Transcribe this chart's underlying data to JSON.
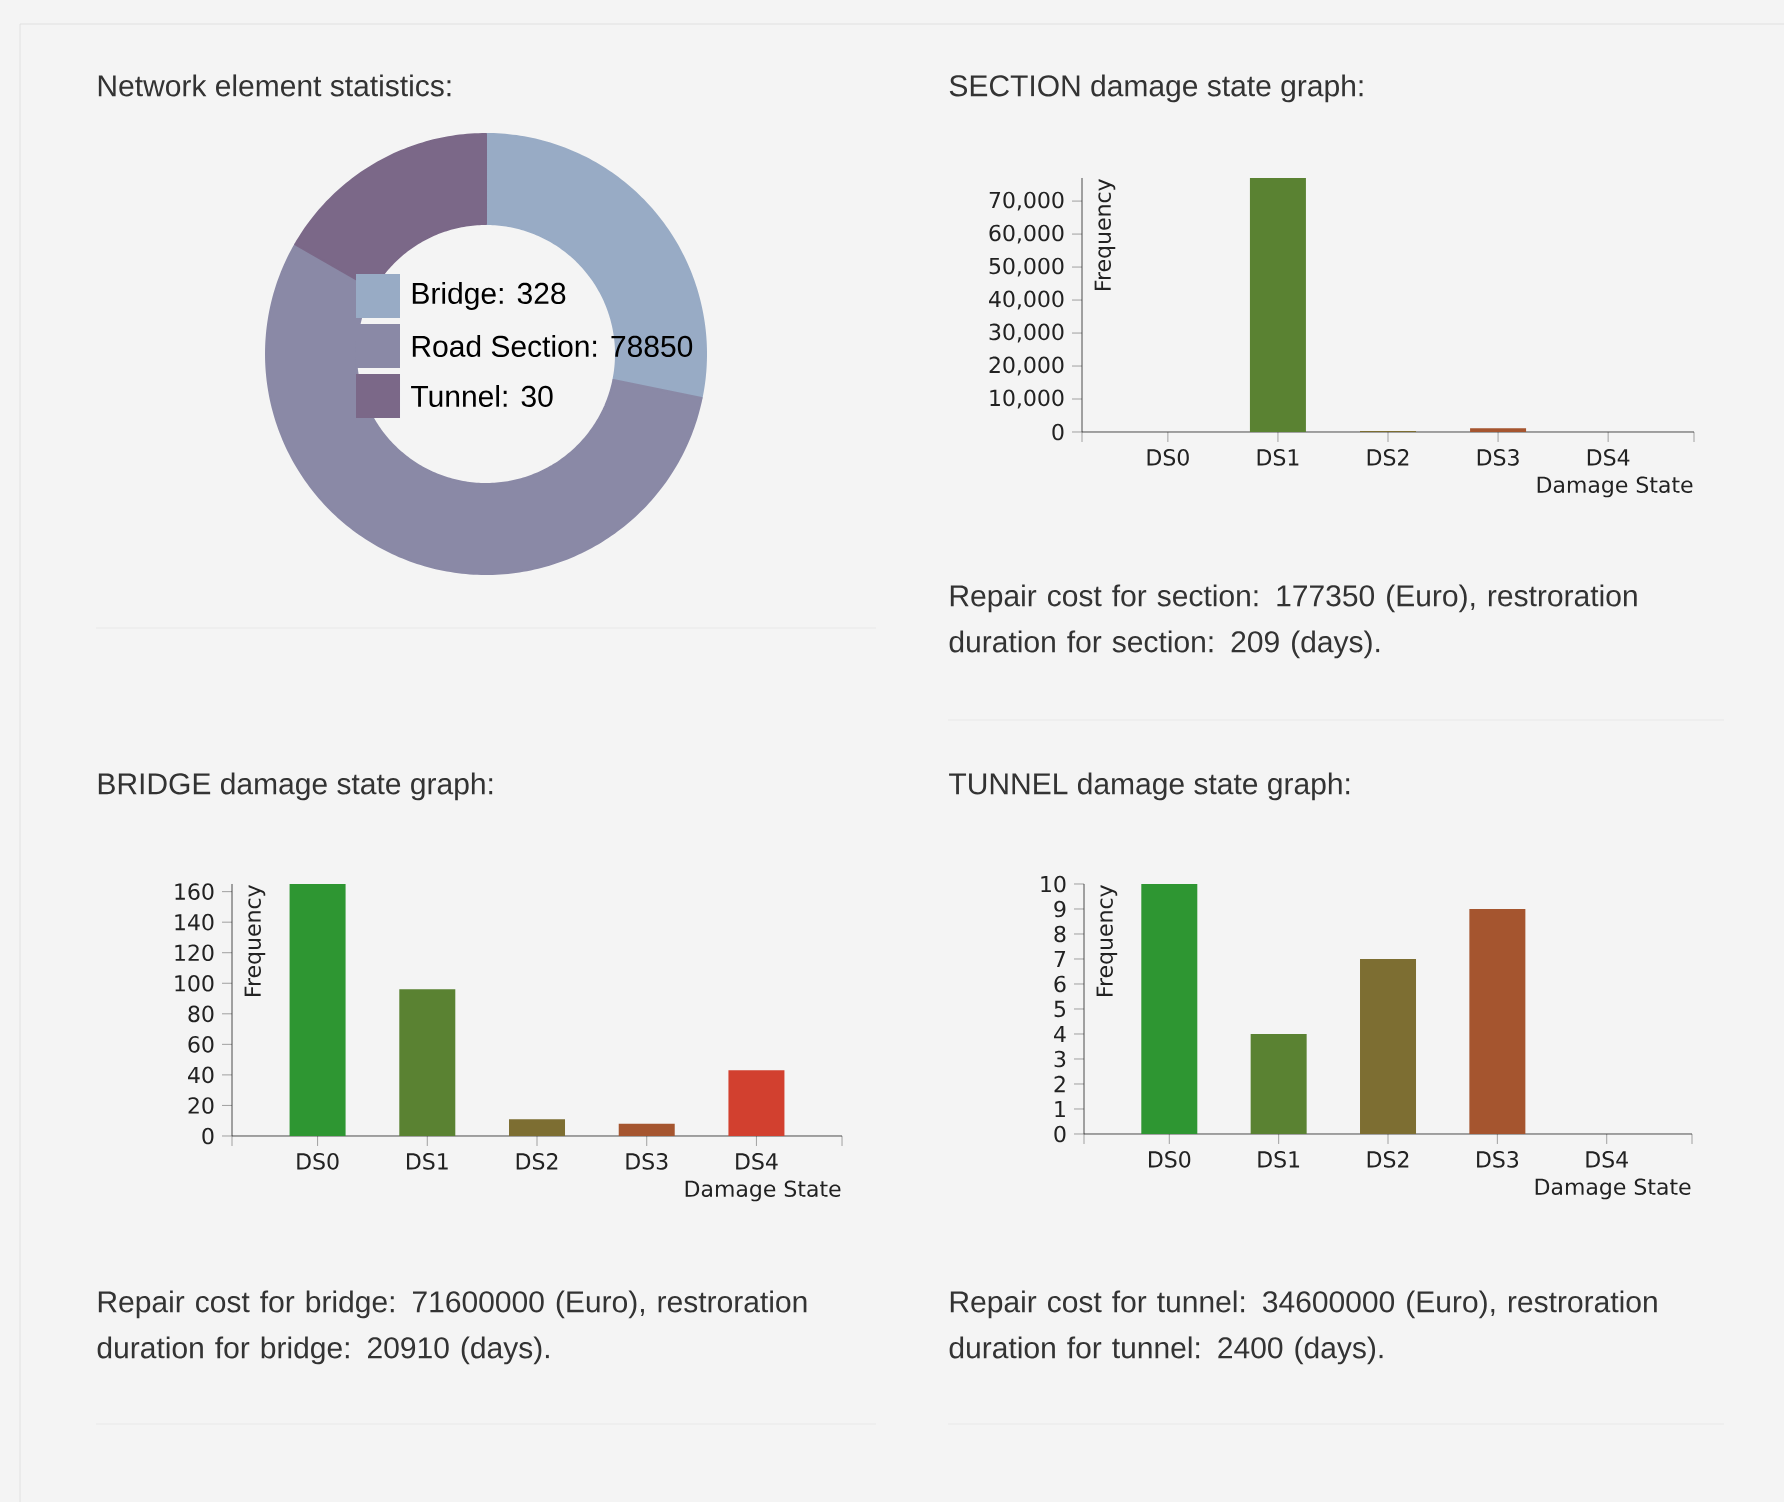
{
  "chart_data": [
    {
      "type": "donut",
      "title": "Network element statistics:",
      "categories": [
        "Bridge: 328",
        "Road Section: 78850",
        "Tunnel: 30"
      ],
      "values": [
        28.2,
        55.1,
        16.7
      ],
      "colors": [
        "#98abc5",
        "#8a89a6",
        "#7b6888"
      ],
      "legend": "center"
    },
    {
      "type": "bar",
      "title": "SECTION damage state graph:",
      "xlabel": "Damage State",
      "ylabel": "Frequency",
      "categories": [
        "DS0",
        "DS1",
        "DS2",
        "DS3",
        "DS4"
      ],
      "values": [
        0,
        77000,
        300,
        1100,
        0
      ],
      "colors": [
        "#2e9632",
        "#5a8232",
        "#7d6e32",
        "#a5552f",
        "#d2402f"
      ],
      "ylim": [
        0,
        77000
      ],
      "yticks": [
        0,
        {
          "value": 10000,
          "label": "10,000"
        },
        {
          "value": 20000,
          "label": "20,000"
        },
        {
          "value": 30000,
          "label": "30,000"
        },
        {
          "value": 40000,
          "label": "40,000"
        },
        {
          "value": 50000,
          "label": "50,000"
        },
        {
          "value": 60000,
          "label": "60,000"
        },
        {
          "value": 70000,
          "label": "70,000"
        }
      ],
      "annotations": [
        "Repair cost for section: 177350 (Euro), restroration duration for section: 209 (days)."
      ]
    },
    {
      "type": "bar",
      "title": "BRIDGE damage state graph:",
      "xlabel": "Damage State",
      "ylabel": "Frequency",
      "categories": [
        "DS0",
        "DS1",
        "DS2",
        "DS3",
        "DS4"
      ],
      "values": [
        165,
        96,
        11,
        8,
        43
      ],
      "colors": [
        "#2e9632",
        "#5a8232",
        "#7d6e32",
        "#a5552f",
        "#d2402f"
      ],
      "ylim": [
        0,
        165
      ],
      "yticks": [
        0,
        20,
        40,
        60,
        80,
        100,
        120,
        140,
        160
      ],
      "annotations": [
        "Repair cost for bridge: 71600000 (Euro), restroration duration for bridge: 20910 (days)."
      ]
    },
    {
      "type": "bar",
      "title": "TUNNEL damage state graph:",
      "xlabel": "Damage State",
      "ylabel": "Frequency",
      "categories": [
        "DS0",
        "DS1",
        "DS2",
        "DS3",
        "DS4"
      ],
      "values": [
        10,
        4,
        7,
        9,
        0
      ],
      "colors": [
        "#2e9632",
        "#5a8232",
        "#7d6e32",
        "#a5552f",
        "#d2402f"
      ],
      "ylim": [
        0,
        10
      ],
      "yticks": [
        0,
        1,
        2,
        3,
        4,
        5,
        6,
        7,
        8,
        9,
        10
      ],
      "annotations": [
        "Repair cost for tunnel: 34600000 (Euro), restroration duration for tunnel: 2400 (days)."
      ]
    }
  ]
}
